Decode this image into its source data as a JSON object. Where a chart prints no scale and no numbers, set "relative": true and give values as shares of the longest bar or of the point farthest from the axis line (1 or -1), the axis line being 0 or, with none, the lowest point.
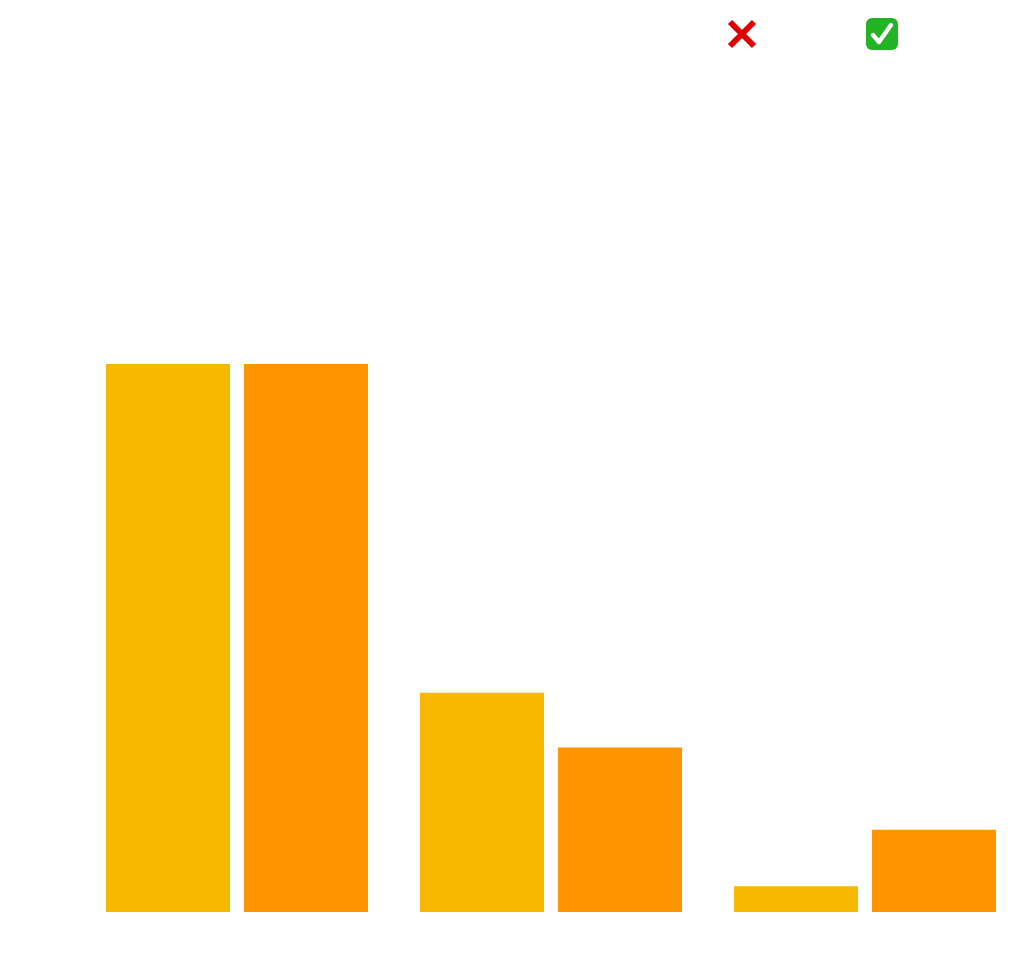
{
  "chart_data": {
    "type": "bar",
    "relative": true,
    "categories": [
      null,
      null,
      null
    ],
    "series": [
      {
        "color": "#f7b900",
        "values": [
          1,
          0.4,
          0.047
        ]
      },
      {
        "color": "#ff9400",
        "values": [
          1,
          0.3,
          0.15
        ]
      }
    ],
    "grid": false
  }
}
